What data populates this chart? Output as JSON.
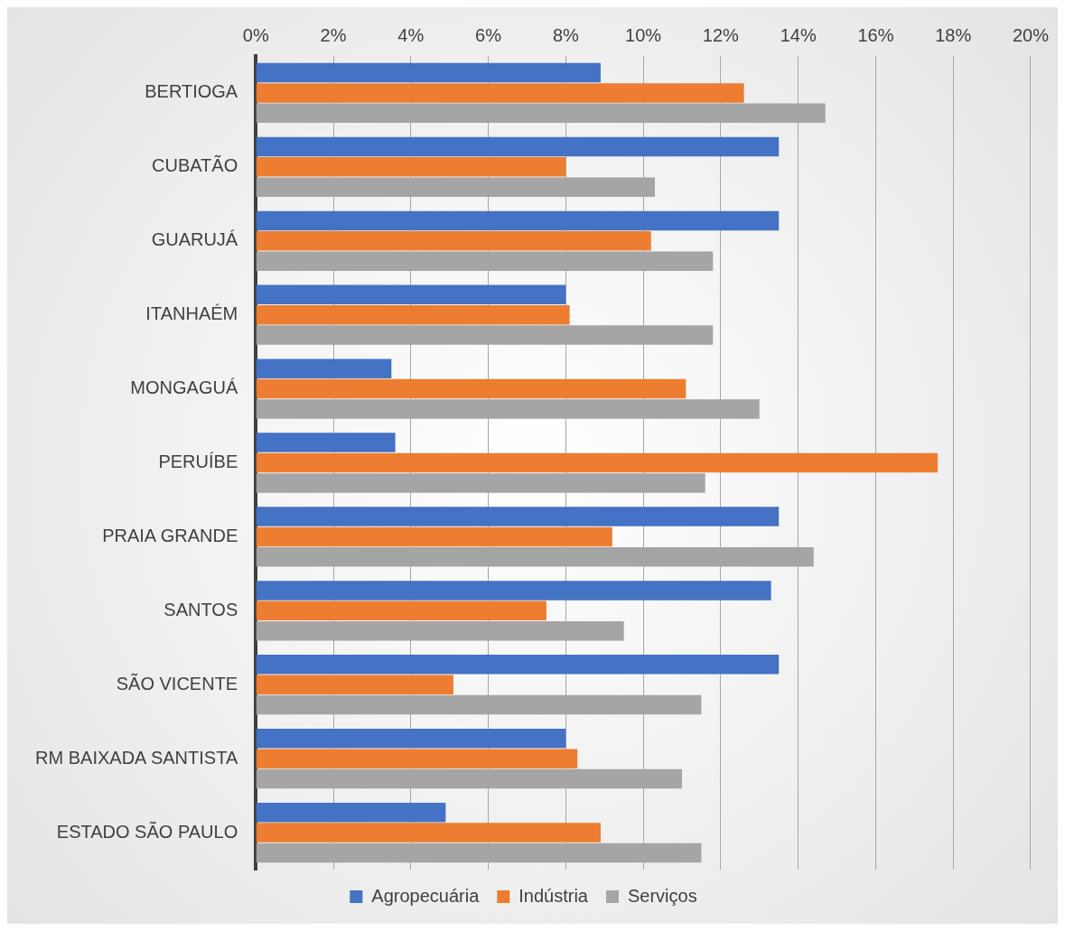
{
  "chart_data": {
    "type": "bar",
    "orientation": "horizontal",
    "categories": [
      "BERTIOGA",
      "CUBATÃO",
      "GUARUJÁ",
      "ITANHAÉM",
      "MONGAGUÁ",
      "PERUÍBE",
      "PRAIA GRANDE",
      "SANTOS",
      "SÃO VICENTE",
      "RM BAIXADA SANTISTA",
      "ESTADO SÃO PAULO"
    ],
    "series": [
      {
        "name": "Agropecuária",
        "color": "#4472c4",
        "values": [
          8.9,
          13.5,
          13.5,
          8.0,
          3.5,
          3.6,
          13.5,
          13.3,
          13.5,
          8.0,
          4.9
        ]
      },
      {
        "name": "Indústria",
        "color": "#ed7d31",
        "values": [
          12.6,
          8.0,
          10.2,
          8.1,
          11.1,
          17.6,
          9.2,
          7.5,
          5.1,
          8.3,
          8.9
        ]
      },
      {
        "name": "Serviços",
        "color": "#a5a5a5",
        "values": [
          14.7,
          10.3,
          11.8,
          11.8,
          13.0,
          11.6,
          14.4,
          9.5,
          11.5,
          11.0,
          11.5
        ]
      }
    ],
    "xlim": [
      0,
      20
    ],
    "xticks": [
      {
        "value": 0,
        "label": "0%"
      },
      {
        "value": 2,
        "label": "2%"
      },
      {
        "value": 4,
        "label": "4%"
      },
      {
        "value": 6,
        "label": "6%"
      },
      {
        "value": 8,
        "label": "8%"
      },
      {
        "value": 10,
        "label": "10%"
      },
      {
        "value": 12,
        "label": "12%"
      },
      {
        "value": 14,
        "label": "14%"
      },
      {
        "value": 16,
        "label": "16%"
      },
      {
        "value": 18,
        "label": "18%"
      },
      {
        "value": 20,
        "label": "20%"
      }
    ],
    "grid": "x",
    "legend": "bottom"
  }
}
